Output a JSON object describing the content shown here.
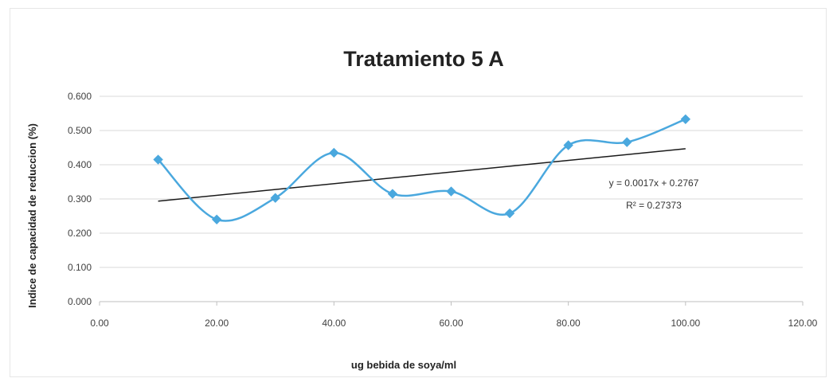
{
  "chart_data": {
    "type": "line",
    "title": "Tratamiento 5 A",
    "xlabel": "ug bebida de soya/ml",
    "ylabel": "Indice de capacidad de reduccion (%)",
    "xlim": [
      0,
      120
    ],
    "ylim": [
      0,
      0.6
    ],
    "x_ticks": [
      "0.00",
      "20.00",
      "40.00",
      "60.00",
      "80.00",
      "100.00",
      "120.00"
    ],
    "y_ticks": [
      "0.000",
      "0.100",
      "0.200",
      "0.300",
      "0.400",
      "0.500",
      "0.600"
    ],
    "grid": true,
    "smooth": true,
    "series": [
      {
        "x": [
          10,
          20,
          30,
          40,
          50,
          60,
          70,
          80,
          90,
          100
        ],
        "y": [
          0.415,
          0.24,
          0.303,
          0.435,
          0.315,
          0.322,
          0.258,
          0.457,
          0.466,
          0.533
        ],
        "color": "#4aa8de",
        "marker": "diamond"
      }
    ],
    "trendline": {
      "type": "linear",
      "x": [
        10,
        100
      ],
      "slope": 0.0017,
      "intercept": 0.2767,
      "color": "#1a1a1a",
      "equation": "y = 0.0017x + 0.2767",
      "r_squared": "R² = 0.27373"
    }
  }
}
